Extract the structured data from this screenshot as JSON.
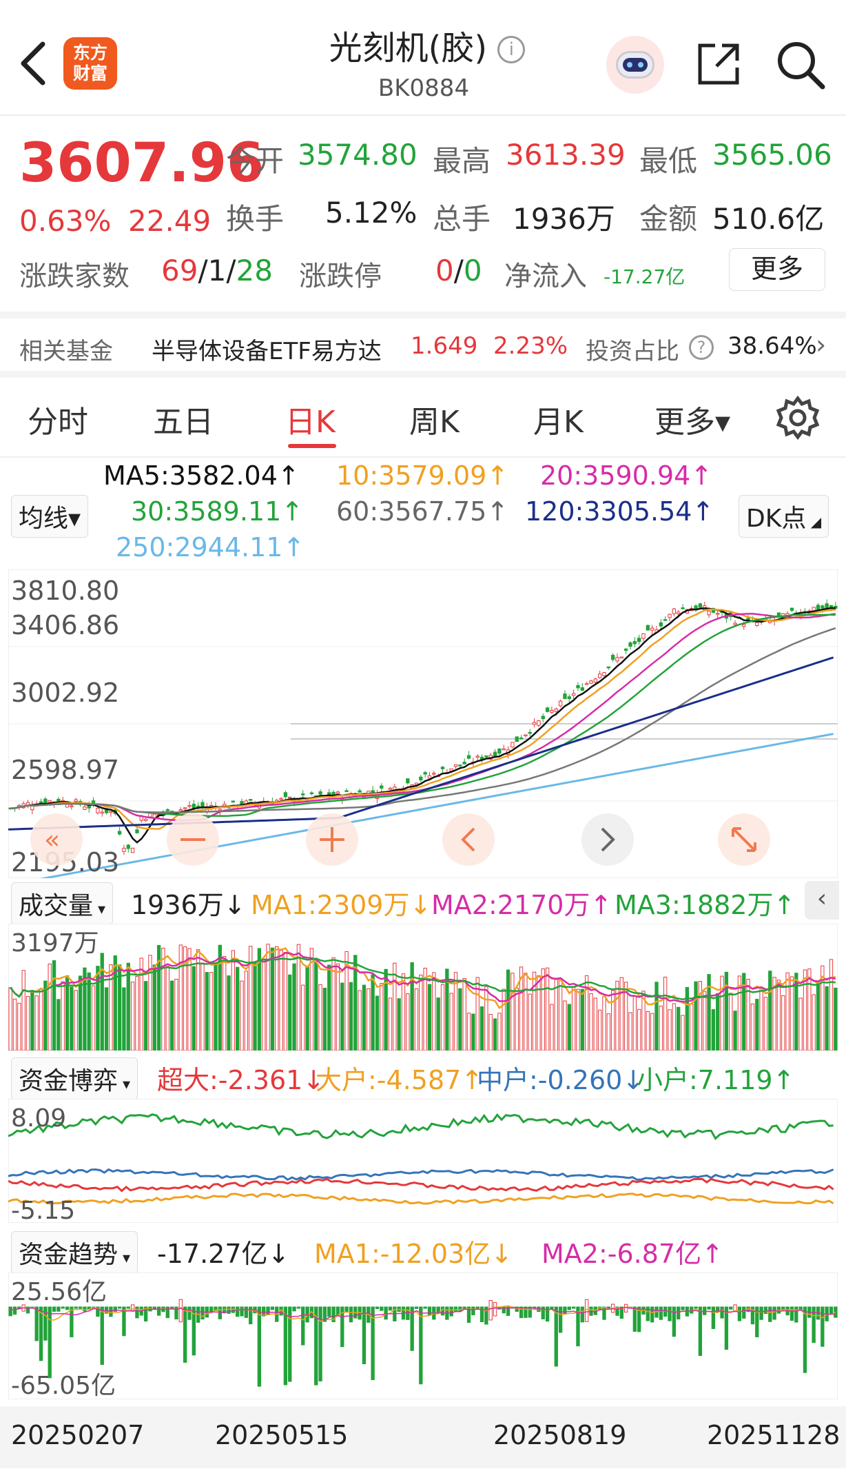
{
  "header": {
    "title": "光刻机(胶)",
    "code": "BK0884",
    "logo_text_1": "东方",
    "logo_text_2": "财富"
  },
  "quote": {
    "price": "3607.96",
    "change_pct": "0.63%",
    "change": "22.49",
    "open_label": "今开",
    "open": "3574.80",
    "high_label": "最高",
    "high": "3613.39",
    "low_label": "最低",
    "low": "3565.06",
    "turnover_label": "换手",
    "turnover": "5.12%",
    "volume_label": "总手",
    "volume": "1936万",
    "amount_label": "金额",
    "amount": "510.6亿",
    "updown_label": "涨跌家数",
    "up": "69",
    "flat": "1",
    "down": "28",
    "limit_label": "涨跌停",
    "limit_up": "0",
    "limit_down": "0",
    "inflow_label": "净流入",
    "inflow": "-17.27亿",
    "more_button": "更多"
  },
  "fund": {
    "label": "相关基金",
    "name": "半导体设备ETF易方达",
    "price": "1.649",
    "pct": "2.23%",
    "ratio_label": "投资占比",
    "ratio": "38.64%"
  },
  "tabs": [
    "分时",
    "五日",
    "日K",
    "周K",
    "月K",
    "更多▾"
  ],
  "active_tab": "日K",
  "ma": {
    "ma5": "MA5:3582.04↑",
    "ma10": "10:3579.09↑",
    "ma20": "20:3590.94↑",
    "ma30": "30:3589.11↑",
    "ma60": "60:3567.75↑",
    "ma120": "120:3305.54↑",
    "ma250": "250:2944.11↑",
    "select_label": "均线▾",
    "dk_button": "DK点"
  },
  "kline": {
    "y_labels": [
      "3810.80",
      "3406.86",
      "3002.92",
      "2598.97",
      "2195.03"
    ],
    "colors": {
      "ma5": "#111111",
      "ma10": "#f0a020",
      "ma20": "#d62ca8",
      "ma30": "#22a33a",
      "ma60": "#777777",
      "ma120": "#1a2f8a",
      "ma250": "#6ab8e8",
      "up": "#e5383b",
      "down": "#22a33a"
    }
  },
  "volume": {
    "select_label": "成交量",
    "current": "1936万↓",
    "ma1": "MA1:2309万↓",
    "ma2": "MA2:2170万↑",
    "ma3": "MA3:1882万↑",
    "y_label": "3197万"
  },
  "capital": {
    "select_label": "资金博弈",
    "super": "超大:-2.361↓",
    "large": "大户:-4.587↑",
    "mid": "中户:-0.260↓",
    "small": "小户:7.119↑",
    "y_top": "8.09",
    "y_bottom": "-5.15"
  },
  "trend": {
    "select_label": "资金趋势",
    "current": "-17.27亿↓",
    "ma1": "MA1:-12.03亿↓",
    "ma2": "MA2:-6.87亿↑",
    "y_top": "25.56亿",
    "y_bottom": "-65.05亿"
  },
  "dates": [
    "20250207",
    "20250515",
    "20250819",
    "20251128"
  ],
  "chart_data": {
    "type": "line",
    "title": "光刻机(胶)",
    "x": [
      "20250207",
      "20250515",
      "20250819",
      "20251128"
    ],
    "series": [
      {
        "name": "MA5",
        "values": [
          2520,
          2640,
          3000,
          3582.04
        ]
      },
      {
        "name": "MA60",
        "values": [
          2500,
          2540,
          2700,
          3567.75
        ]
      },
      {
        "name": "MA120",
        "values": [
          2450,
          2500,
          2640,
          3305.54
        ]
      },
      {
        "name": "MA250",
        "values": [
          2100,
          2250,
          2550,
          2944.11
        ]
      }
    ],
    "ylim": [
      2195.03,
      3810.8
    ]
  }
}
